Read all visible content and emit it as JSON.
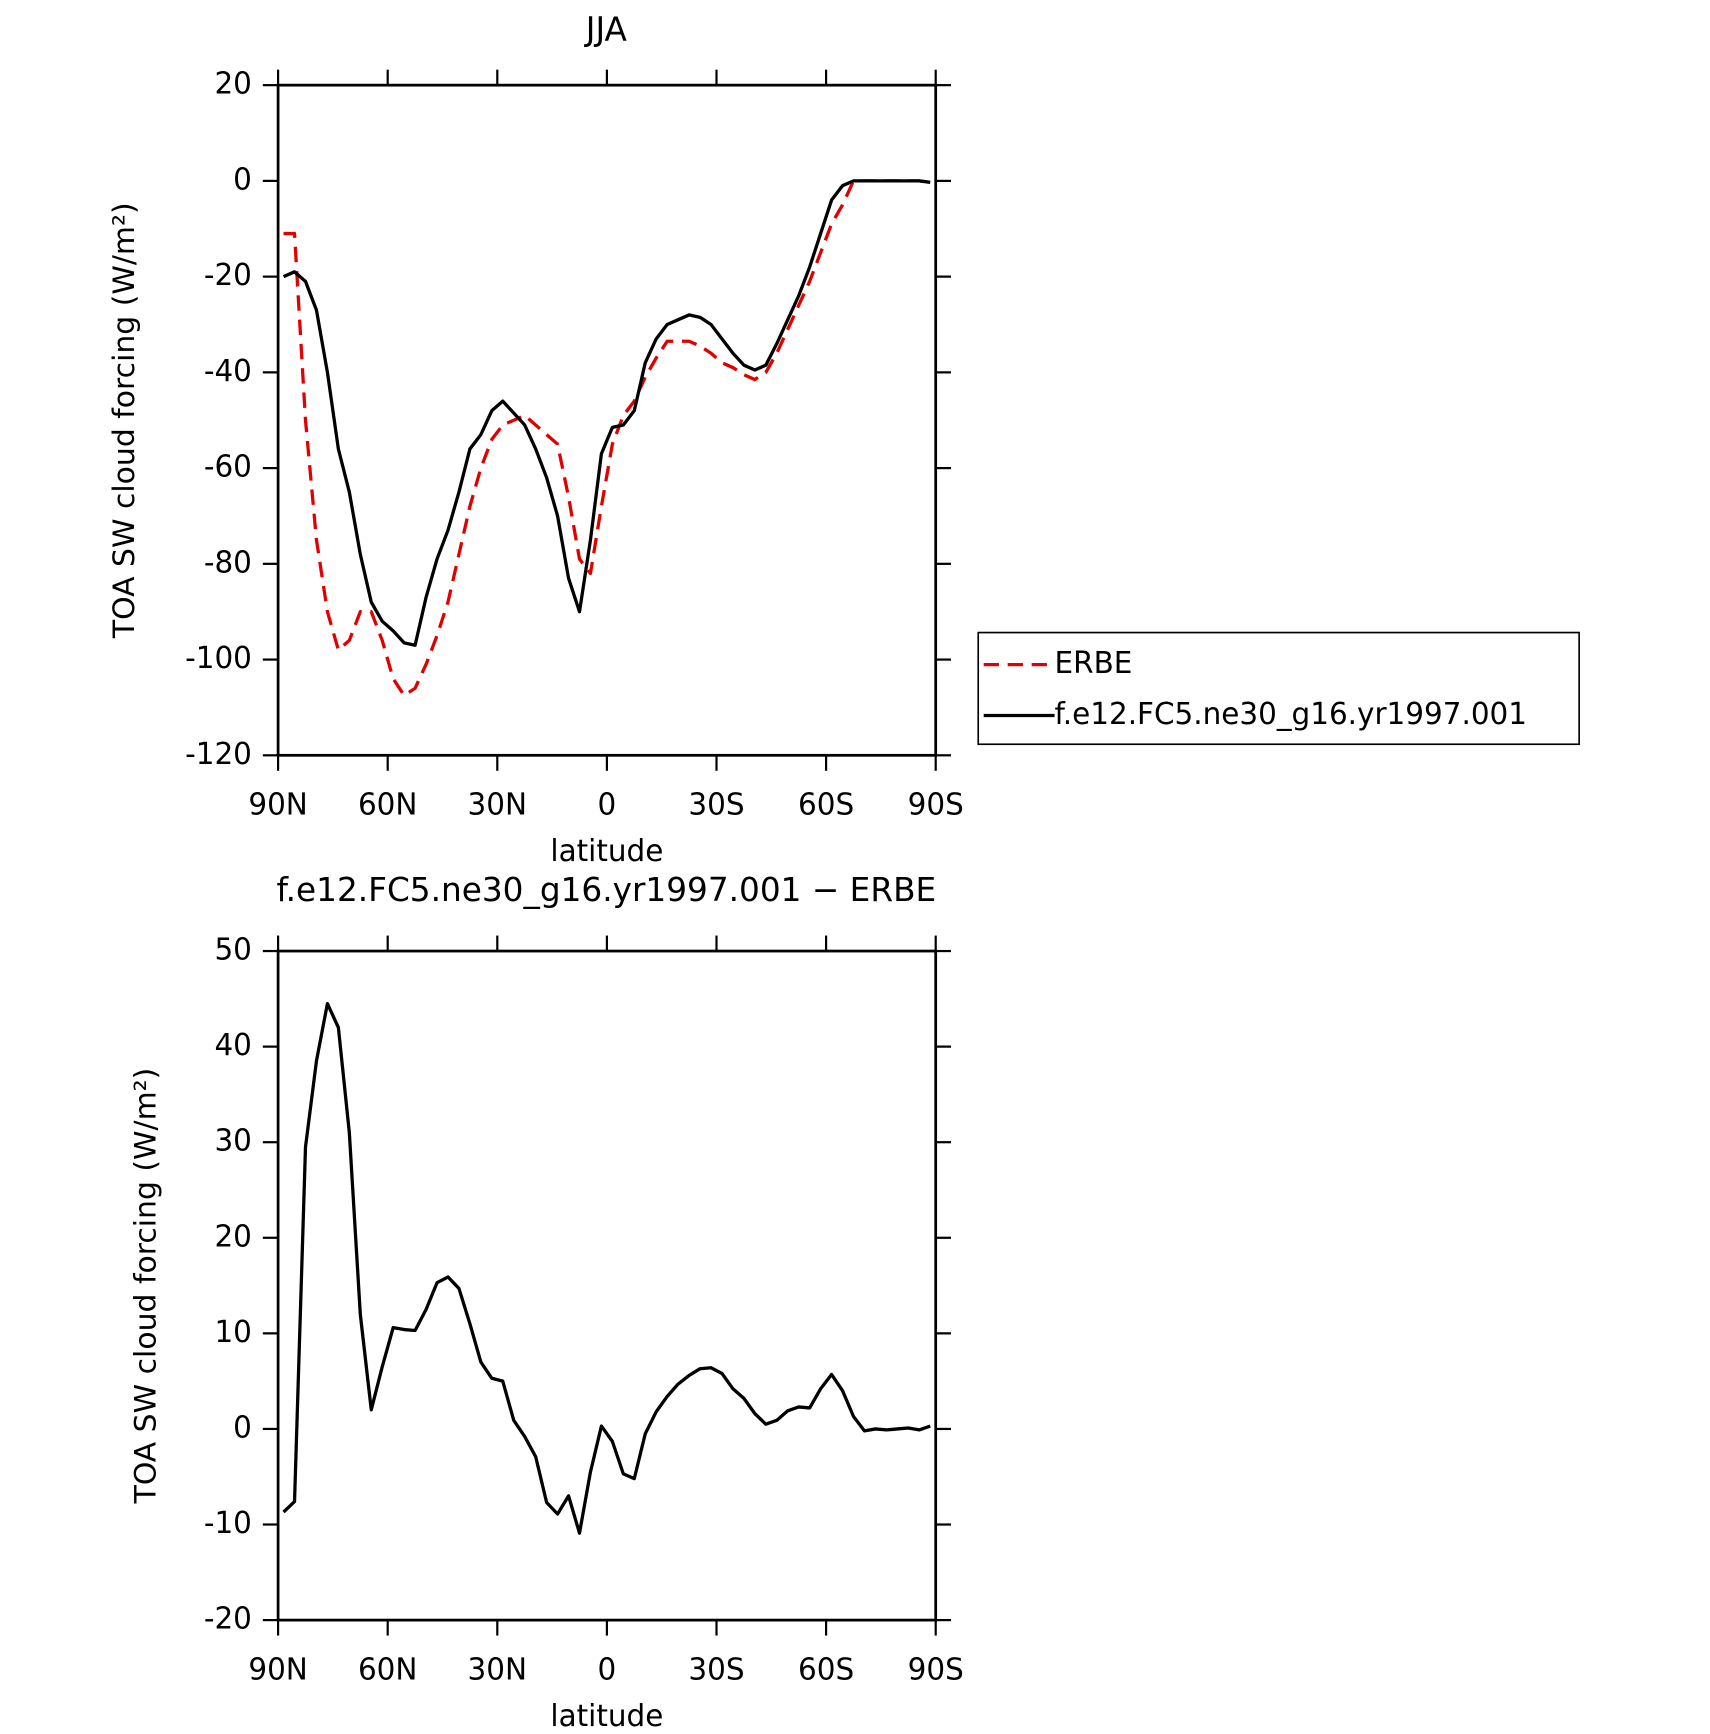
{
  "chart_data": [
    {
      "type": "line",
      "title": "JJA",
      "xlabel": "latitude",
      "ylabel": "TOA SW cloud forcing (W/m²)",
      "x": [
        88.5,
        85.5,
        82.5,
        79.5,
        76.5,
        73.5,
        70.5,
        67.5,
        64.5,
        61.5,
        58.5,
        55.5,
        52.5,
        49.5,
        46.5,
        43.5,
        40.5,
        37.5,
        34.5,
        31.5,
        28.5,
        25.5,
        22.5,
        19.5,
        16.5,
        13.5,
        10.5,
        7.5,
        4.5,
        1.5,
        -1.5,
        -4.5,
        -7.5,
        -10.5,
        -13.5,
        -16.5,
        -19.5,
        -22.5,
        -25.5,
        -28.5,
        -31.5,
        -34.5,
        -37.5,
        -40.5,
        -43.5,
        -46.5,
        -49.5,
        -52.5,
        -55.5,
        -58.5,
        -61.5,
        -64.5,
        -67.5,
        -70.5,
        -73.5,
        -76.5,
        -79.5,
        -82.5,
        -85.5,
        -88.5
      ],
      "series": [
        {
          "name": "ERBE",
          "color": "#e00000",
          "dash": "dashed",
          "values": [
            -11,
            -11,
            -50,
            -75,
            -90,
            -98,
            -96,
            -90,
            -90,
            -96,
            -104,
            -107.5,
            -106,
            -101,
            -95,
            -88,
            -78,
            -68,
            -60,
            -54,
            -51,
            -50,
            -49,
            -51,
            -53,
            -55,
            -66,
            -79,
            -82,
            -68,
            -55,
            -49,
            -46,
            -41,
            -37,
            -33.5,
            -33.5,
            -33.5,
            -34.5,
            -36,
            -38,
            -39,
            -40.5,
            -41.5,
            -40,
            -36,
            -31,
            -26,
            -21,
            -15,
            -9,
            -5,
            0,
            0,
            0,
            0,
            0,
            0,
            0,
            -0.3
          ]
        },
        {
          "name": "f.e12.FC5.ne30_g16.yr1997.001",
          "color": "#000000",
          "dash": "solid",
          "values": [
            -20,
            -19,
            -21,
            -27,
            -40,
            -56,
            -65,
            -78,
            -88,
            -92,
            -94,
            -96.5,
            -97,
            -87,
            -79,
            -73,
            -65,
            -56,
            -53,
            -48,
            -46,
            -48.5,
            -51,
            -56,
            -62,
            -70,
            -83,
            -90,
            -75,
            -57,
            -51.5,
            -51,
            -48,
            -38,
            -33,
            -30,
            -29,
            -28,
            -28.5,
            -30,
            -33,
            -36,
            -38.5,
            -39.5,
            -38.5,
            -34,
            -29,
            -24,
            -18,
            -11,
            -4,
            -1,
            0,
            0,
            0,
            0,
            0,
            0,
            0,
            -0.3
          ]
        }
      ],
      "xlim": [
        90,
        -90
      ],
      "xticks": [
        {
          "value": 90,
          "label": "90N"
        },
        {
          "value": 60,
          "label": "60N"
        },
        {
          "value": 30,
          "label": "30N"
        },
        0,
        {
          "value": -30,
          "label": "30S"
        },
        {
          "value": -60,
          "label": "60S"
        },
        {
          "value": -90,
          "label": "90S"
        }
      ],
      "ylim": [
        -120,
        20
      ],
      "yticks": [
        -120,
        -100,
        -80,
        -60,
        -40,
        -20,
        0,
        20
      ],
      "legend": "right"
    },
    {
      "type": "line",
      "title": "f.e12.FC5.ne30_g16.yr1997.001 − ERBE",
      "xlabel": "latitude",
      "ylabel": "TOA SW cloud forcing (W/m²)",
      "x": [
        88.5,
        85.5,
        82.5,
        79.5,
        76.5,
        73.5,
        70.5,
        67.5,
        64.5,
        61.5,
        58.5,
        55.5,
        52.5,
        49.5,
        46.5,
        43.5,
        40.5,
        37.5,
        34.5,
        31.5,
        28.5,
        25.5,
        22.5,
        19.5,
        16.5,
        13.5,
        10.5,
        7.5,
        4.5,
        1.5,
        -1.5,
        -4.5,
        -7.5,
        -10.5,
        -13.5,
        -16.5,
        -19.5,
        -22.5,
        -25.5,
        -28.5,
        -31.5,
        -34.5,
        -37.5,
        -40.5,
        -43.5,
        -46.5,
        -49.5,
        -52.5,
        -55.5,
        -58.5,
        -61.5,
        -64.5,
        -67.5,
        -70.5,
        -73.5,
        -76.5,
        -79.5,
        -82.5,
        -85.5,
        -88.5
      ],
      "values": [
        -8.7,
        -7.6,
        29.5,
        38.5,
        44.5,
        42,
        31,
        12,
        2,
        6.5,
        10.6,
        10.4,
        10.3,
        12.5,
        15.3,
        15.9,
        14.7,
        11,
        7,
        5.3,
        5,
        0.9,
        -0.8,
        -2.9,
        -7.7,
        -8.9,
        -7,
        -10.9,
        -4.5,
        0.3,
        -1.3,
        -4.7,
        -5.2,
        -0.5,
        1.8,
        3.4,
        4.7,
        5.6,
        6.3,
        6.4,
        5.8,
        4.2,
        3.2,
        1.6,
        0.5,
        0.9,
        1.9,
        2.3,
        2.2,
        4.2,
        5.7,
        4,
        1.3,
        -0.2,
        0,
        -0.1,
        0,
        0.1,
        -0.1,
        0.3
      ],
      "color": "#000000",
      "xlim": [
        90,
        -90
      ],
      "xticks": [
        {
          "value": 90,
          "label": "90N"
        },
        {
          "value": 60,
          "label": "60N"
        },
        {
          "value": 30,
          "label": "30N"
        },
        0,
        {
          "value": -30,
          "label": "30S"
        },
        {
          "value": -60,
          "label": "60S"
        },
        {
          "value": -90,
          "label": "90S"
        }
      ],
      "ylim": [
        -20,
        50
      ],
      "yticks": [
        -20,
        -10,
        0,
        10,
        20,
        30,
        40,
        50
      ]
    }
  ]
}
